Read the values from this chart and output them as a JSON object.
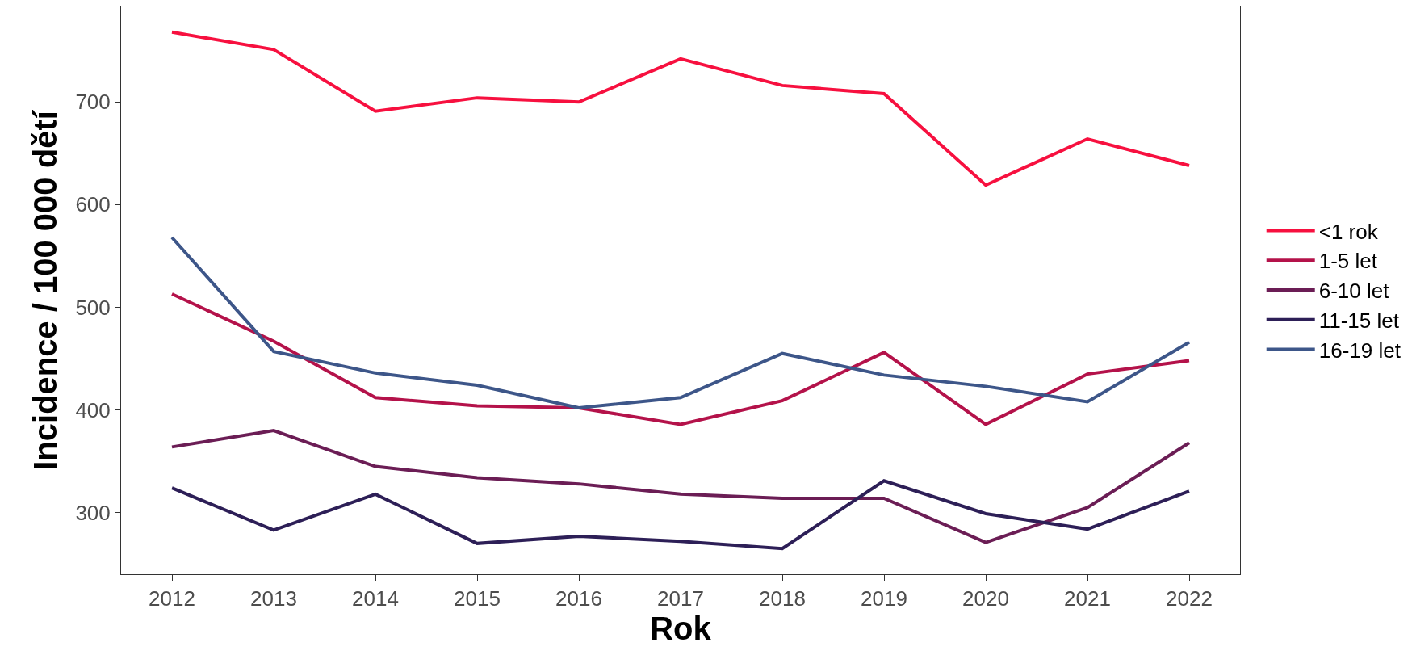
{
  "chart_data": {
    "type": "line",
    "xlabel": "Rok",
    "ylabel": "Incidence / 100 000 dětí",
    "categories": [
      "2012",
      "2013",
      "2014",
      "2015",
      "2016",
      "2017",
      "2018",
      "2019",
      "2020",
      "2021",
      "2022"
    ],
    "series": [
      {
        "name": "<1 rok",
        "color": "#f7103f",
        "values": [
          768,
          751,
          691,
          704,
          700,
          742,
          716,
          708,
          619,
          664,
          638
        ]
      },
      {
        "name": "1-5 let",
        "color": "#b4124a",
        "values": [
          513,
          467,
          412,
          404,
          402,
          386,
          409,
          456,
          386,
          435,
          448
        ]
      },
      {
        "name": "6-10 let",
        "color": "#6b1d55",
        "values": [
          364,
          380,
          345,
          334,
          328,
          318,
          314,
          314,
          271,
          305,
          368
        ]
      },
      {
        "name": "11-15 let",
        "color": "#2d1f57",
        "values": [
          324,
          283,
          318,
          270,
          277,
          272,
          265,
          331,
          299,
          284,
          321
        ]
      },
      {
        "name": "16-19 let",
        "color": "#3d5689",
        "values": [
          568,
          457,
          436,
          424,
          402,
          412,
          455,
          434,
          423,
          408,
          466
        ]
      }
    ],
    "ylim": [
      240,
      793
    ],
    "yticks": [
      300,
      400,
      500,
      600,
      700
    ],
    "legend": "right",
    "marker": "none",
    "line_style": "solid"
  }
}
